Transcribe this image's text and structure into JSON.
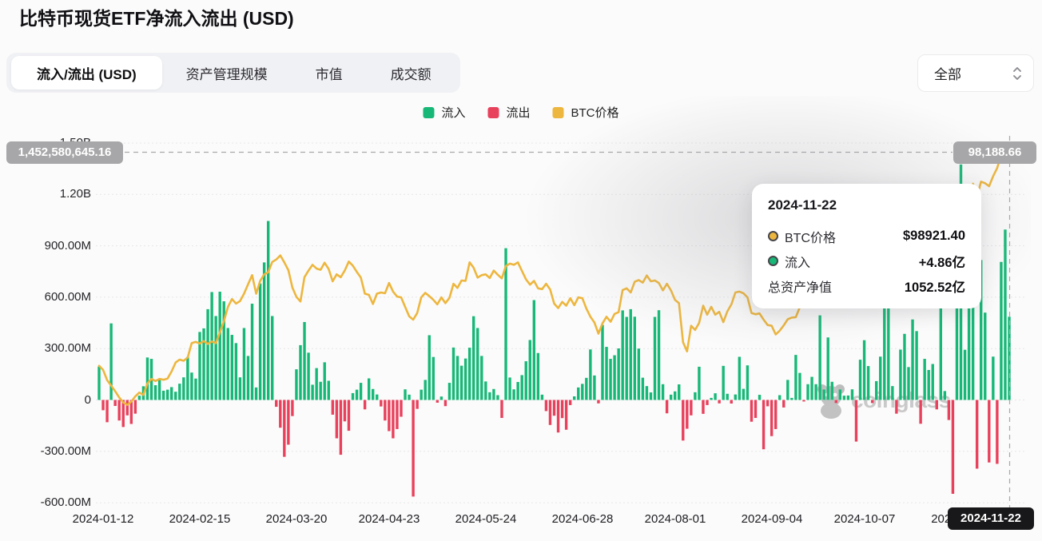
{
  "header": {
    "title": "比特币现货ETF净流入流出 (USD)"
  },
  "tabs": [
    {
      "label": "流入/流出 (USD)",
      "active": true
    },
    {
      "label": "资产管理规模",
      "active": false
    },
    {
      "label": "市值",
      "active": false
    },
    {
      "label": "成交额",
      "active": false
    }
  ],
  "range_select": {
    "value": "全部"
  },
  "legend": [
    {
      "label": "流入",
      "color": "#17b877"
    },
    {
      "label": "流出",
      "color": "#e8415c"
    },
    {
      "label": "BTC价格",
      "color": "#edb63e"
    }
  ],
  "crosshair": {
    "left_axis_value": "1,452,580,645.16",
    "right_axis_value": "98,188.66",
    "date": "2024-11-22"
  },
  "tooltip": {
    "date": "2024-11-22",
    "rows": [
      {
        "marker": "#edb63e",
        "label": "BTC价格",
        "value": "$98921.40"
      },
      {
        "marker": "#17b877",
        "label": "流入",
        "value": "+4.86亿"
      },
      {
        "marker": null,
        "label": "总资产净值",
        "value": "1052.52亿"
      }
    ]
  },
  "watermark": {
    "text": "coinglass"
  },
  "chart_data": {
    "type": "bar",
    "title": "比特币现货ETF净流入流出 (USD)",
    "legend_position": "top-center",
    "grid": true,
    "y_axis_unit": "USD",
    "y_ticks": [
      {
        "label": "1.50B",
        "value_m": 1500
      },
      {
        "label": "1.20B",
        "value_m": 1200
      },
      {
        "label": "900.00M",
        "value_m": 900
      },
      {
        "label": "600.00M",
        "value_m": 600
      },
      {
        "label": "300.00M",
        "value_m": 300
      },
      {
        "label": "0",
        "value_m": 0
      },
      {
        "label": "-300.00M",
        "value_m": -300
      },
      {
        "label": "-600.00M",
        "value_m": -600
      }
    ],
    "ylim_m": [
      -700,
      1550
    ],
    "x_tick_labels": [
      "2024-01-12",
      "2024-02-15",
      "2024-03-20",
      "2024-04-23",
      "2024-05-24",
      "2024-06-28",
      "2024-08-01",
      "2024-09-04",
      "2024-10-07",
      "2024-11-08"
    ],
    "x_tick_indices": [
      1,
      25,
      49,
      72,
      96,
      120,
      143,
      167,
      190,
      214
    ],
    "x_range": [
      "2024-01-12",
      "2024-11-22"
    ],
    "series": [
      {
        "name": "净流入/流出",
        "type": "bar",
        "unit": "million USD",
        "color_positive": "#17b877",
        "color_negative": "#e8415c",
        "values_m": [
          195,
          -60,
          -130,
          447,
          -35,
          -120,
          -158,
          -90,
          -140,
          -80,
          25,
          80,
          248,
          240,
          86,
          120,
          54,
          60,
          75,
          48,
          95,
          132,
          251,
          160,
          125,
          397,
          418,
          530,
          630,
          490,
          632,
          576,
          420,
          380,
          332,
          132,
          420,
          257,
          562,
          73,
          680,
          803,
          1045,
          490,
          -40,
          -162,
          -332,
          -261,
          -94,
          179,
          320,
          455,
          276,
          89,
          186,
          106,
          220,
          112,
          -86,
          -224,
          -320,
          -125,
          -180,
          40,
          60,
          100,
          -55,
          126,
          64,
          32,
          -38,
          -120,
          -182,
          -224,
          -170,
          -98,
          62,
          31,
          -564,
          -52,
          60,
          117,
          378,
          251,
          -16,
          20,
          -36,
          100,
          306,
          257,
          200,
          242,
          305,
          489,
          420,
          257,
          108,
          45,
          64,
          28,
          -105,
          886,
          131,
          62,
          105,
          145,
          226,
          350,
          583,
          274,
          31,
          -65,
          -146,
          -92,
          -190,
          -106,
          -174,
          -30,
          21,
          73,
          94,
          129,
          295,
          143,
          -20,
          438,
          310,
          240,
          261,
          301,
          523,
          485,
          530,
          486,
          300,
          130,
          81,
          44,
          485,
          524,
          92,
          -78,
          31,
          50,
          91,
          -237,
          -168,
          -90,
          45,
          194,
          -81,
          -30,
          12,
          39,
          -20,
          199,
          36,
          -21,
          32,
          252,
          65,
          202,
          -127,
          -105,
          30,
          -288,
          -37,
          -211,
          -170,
          28,
          -44,
          117,
          12,
          263,
          158,
          -9,
          92,
          135,
          92,
          494,
          61,
          365,
          106,
          -18,
          61,
          25,
          26,
          62,
          -243,
          235,
          349,
          198,
          -18,
          110,
          253,
          556,
          870,
          81,
          -80,
          294,
          386,
          192,
          470,
          402,
          -139,
          240,
          175,
          210,
          -55,
          622,
          52,
          -117,
          -548,
          822,
          1375,
          293,
          621,
          1114,
          -401,
          817,
          510,
          -365,
          253,
          -373,
          806,
          995,
          486
        ]
      },
      {
        "name": "BTC价格",
        "type": "line",
        "unit": "thousand USD",
        "axis": "right",
        "color": "#edb63e",
        "values_k": [
          46.3,
          45.3,
          42.8,
          41.5,
          40.1,
          38.6,
          37.4,
          36.8,
          37.6,
          38.9,
          39.8,
          39.2,
          42.0,
          43.1,
          42.6,
          43.1,
          42.9,
          43.2,
          44.9,
          47.1,
          47.8,
          47.5,
          48.3,
          51.8,
          52.1,
          51.7,
          52.3,
          51.6,
          52.2,
          51.8,
          54.4,
          57.1,
          60.6,
          62.5,
          61.4,
          62.0,
          63.8,
          66.1,
          68.3,
          63.8,
          66.9,
          68.5,
          69.0,
          71.5,
          72.1,
          73.1,
          71.4,
          69.5,
          65.3,
          63.0,
          61.9,
          67.8,
          69.4,
          70.8,
          69.9,
          69.6,
          71.3,
          69.8,
          66.8,
          68.5,
          67.8,
          69.4,
          71.6,
          70.6,
          69.1,
          67.7,
          63.8,
          63.5,
          61.3,
          63.8,
          64.1,
          63.9,
          66.4,
          64.3,
          63.1,
          62.9,
          60.6,
          58.3,
          57.5,
          59.1,
          62.9,
          64.0,
          63.2,
          62.3,
          61.2,
          62.9,
          61.5,
          62.8,
          66.2,
          65.2,
          67.0,
          66.9,
          71.4,
          70.1,
          67.7,
          68.3,
          68.5,
          67.6,
          69.4,
          68.4,
          67.5,
          70.5,
          71.1,
          70.8,
          71.4,
          69.3,
          67.3,
          66.0,
          66.9,
          65.1,
          64.9,
          66.2,
          64.8,
          61.4,
          60.3,
          61.8,
          60.9,
          62.7,
          61.0,
          62.9,
          62.7,
          60.2,
          58.2,
          56.8,
          54.1,
          56.6,
          58.2,
          57.0,
          58.9,
          59.3,
          64.7,
          65.1,
          64.1,
          66.7,
          67.1,
          66.5,
          68.2,
          66.8,
          67.0,
          66.4,
          64.6,
          66.2,
          64.6,
          62.3,
          61.5,
          52.0,
          49.8,
          56.0,
          55.0,
          56.7,
          60.9,
          58.7,
          60.6,
          58.7,
          59.4,
          56.9,
          59.5,
          61.2,
          64.1,
          64.3,
          63.9,
          62.9,
          59.1,
          58.8,
          59.0,
          57.5,
          56.2,
          56.0,
          53.9,
          54.8,
          56.1,
          57.6,
          58.0,
          58.1,
          60.5,
          62.9,
          63.3,
          63.1,
          63.6,
          64.2,
          65.7,
          65.8,
          63.6,
          64.1,
          65.6,
          63.3,
          60.7,
          62.1,
          60.6,
          62.2,
          63.2,
          62.1,
          60.8,
          62.5,
          66.1,
          67.4,
          67.0,
          68.4,
          67.3,
          66.7,
          67.0,
          68.2,
          67.1,
          66.6,
          67.9,
          69.9,
          72.7,
          70.2,
          69.4,
          68.8,
          67.8,
          68.7,
          75.6,
          75.9,
          76.7,
          88.7,
          87.9,
          90.5,
          87.3,
          91.0,
          90.6,
          89.9,
          92.3,
          94.3,
          97.5,
          97.0,
          98.9
        ]
      }
    ],
    "crosshair": {
      "left_axis_value": "1,452,580,645.16",
      "right_axis_value": "98,188.66",
      "date": "2024-11-22"
    }
  }
}
